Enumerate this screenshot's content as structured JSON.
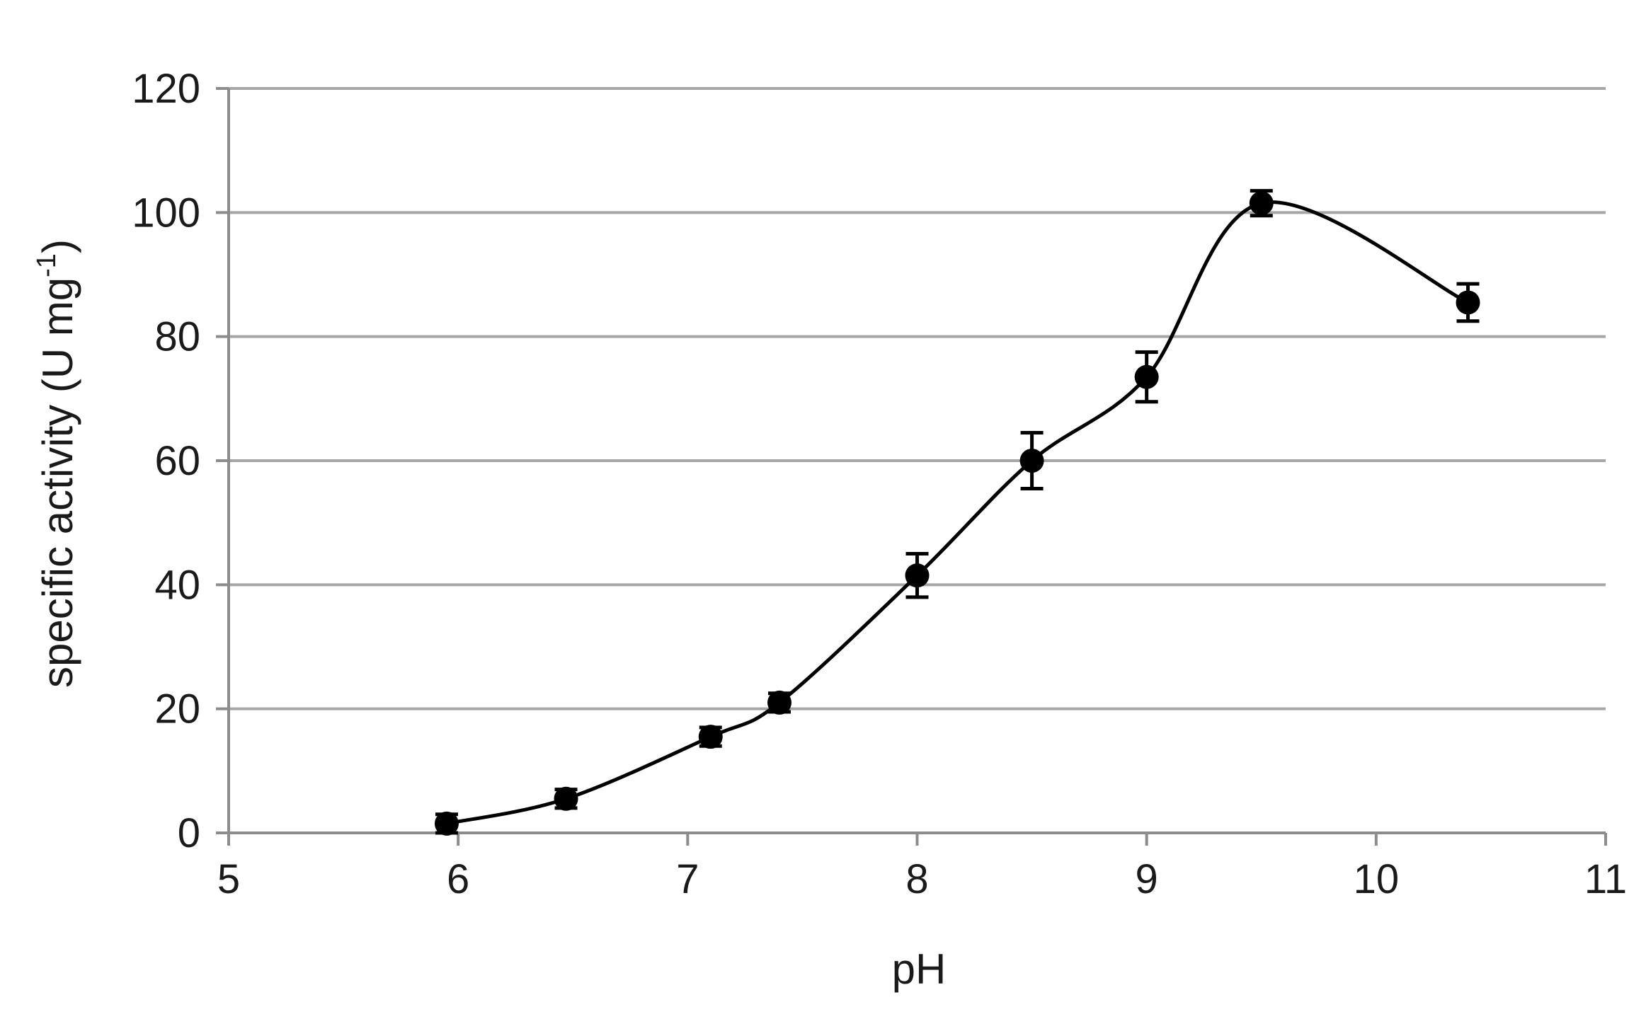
{
  "chart_data": {
    "type": "line",
    "title": "",
    "xlabel": "pH",
    "ylabel": "specific activity (U mg",
    "ylabel_superscript": "-1",
    "ylabel_close": ")",
    "xlim": [
      5,
      11
    ],
    "ylim": [
      0,
      120
    ],
    "x_ticks": [
      "5",
      "6",
      "7",
      "8",
      "9",
      "10",
      "11"
    ],
    "y_ticks": [
      "0",
      "20",
      "40",
      "60",
      "80",
      "100",
      "120"
    ],
    "grid": "horizontal",
    "legend": "none",
    "line_style": "smooth",
    "series": [
      {
        "color": "#000000",
        "x": [
          5.95,
          6.47,
          7.1,
          7.4,
          8.0,
          8.5,
          9.0,
          9.5,
          10.4
        ],
        "y": [
          1.5,
          5.5,
          15.5,
          21.0,
          41.5,
          60.0,
          73.5,
          101.5,
          85.5
        ],
        "error": [
          1.5,
          1.5,
          1.5,
          1.5,
          3.5,
          4.5,
          4.0,
          2.0,
          3.0
        ]
      }
    ]
  },
  "colors": {
    "gridline": "#a6a6a6",
    "axis": "#8c8c8c",
    "marker": "#000000",
    "background": "#ffffff"
  }
}
